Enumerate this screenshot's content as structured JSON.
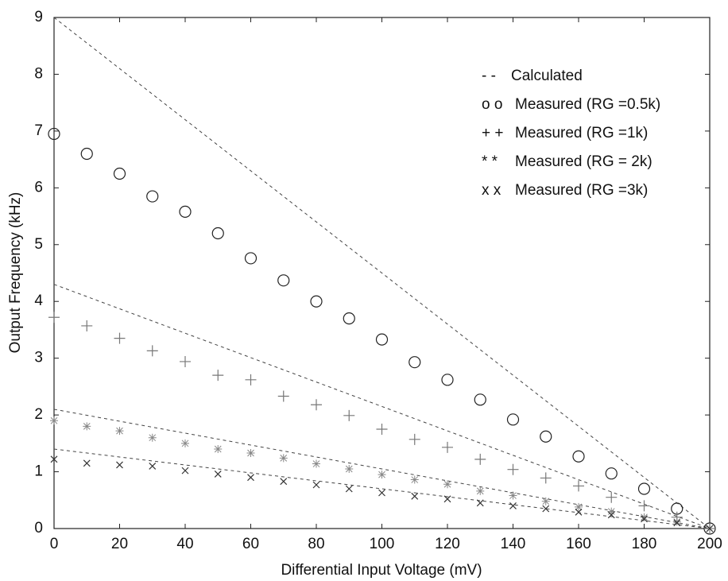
{
  "chart_data": {
    "type": "scatter",
    "xlabel": "Differential Input Voltage (mV)",
    "ylabel": "Output Frequency (kHz)",
    "xlim": [
      0,
      200
    ],
    "ylim": [
      0,
      9
    ],
    "xticks": [
      0,
      20,
      40,
      60,
      80,
      100,
      120,
      140,
      160,
      180,
      200
    ],
    "yticks": [
      0,
      1,
      2,
      3,
      4,
      5,
      6,
      7,
      8,
      9
    ],
    "x": [
      0,
      10,
      20,
      30,
      40,
      50,
      60,
      70,
      80,
      90,
      100,
      110,
      120,
      130,
      140,
      150,
      160,
      170,
      180,
      190,
      200
    ],
    "series": [
      {
        "name": "Calculated",
        "legend_symbol": "- -",
        "marker": "dash-line",
        "color": "#444444",
        "x": [
          0,
          200,
          null,
          0,
          200,
          null,
          0,
          200,
          null,
          0,
          200
        ],
        "values": [
          9,
          0,
          null,
          4.3,
          0,
          null,
          2.1,
          0,
          null,
          1.4,
          0
        ]
      },
      {
        "name": "Measured (RG =0.5k)",
        "legend_symbol": "o o",
        "marker": "circle",
        "color": "#222222",
        "values": [
          6.95,
          6.6,
          6.25,
          5.85,
          5.58,
          5.2,
          4.76,
          4.37,
          4.0,
          3.7,
          3.33,
          2.93,
          2.62,
          2.27,
          1.92,
          1.62,
          1.27,
          0.97,
          0.7,
          0.35,
          0
        ]
      },
      {
        "name": "Measured (RG =1k)",
        "legend_symbol": "+ +",
        "marker": "plus",
        "color": "#777777",
        "values": [
          3.72,
          3.57,
          3.35,
          3.13,
          2.94,
          2.7,
          2.62,
          2.33,
          2.18,
          1.99,
          1.75,
          1.57,
          1.43,
          1.22,
          1.04,
          0.89,
          0.75,
          0.55,
          0.4,
          0.2,
          0
        ]
      },
      {
        "name": "Measured (RG = 2k)",
        "legend_symbol": "* *",
        "marker": "star",
        "color": "#888888",
        "values": [
          1.9,
          1.8,
          1.72,
          1.6,
          1.5,
          1.4,
          1.33,
          1.24,
          1.14,
          1.05,
          0.95,
          0.86,
          0.78,
          0.66,
          0.58,
          0.48,
          0.38,
          0.3,
          0.2,
          0.12,
          0
        ]
      },
      {
        "name": "Measured (RG =3k)",
        "legend_symbol": "x x",
        "marker": "cross",
        "color": "#333333",
        "values": [
          1.22,
          1.15,
          1.12,
          1.1,
          1.02,
          0.96,
          0.9,
          0.83,
          0.77,
          0.7,
          0.63,
          0.57,
          0.52,
          0.45,
          0.4,
          0.35,
          0.29,
          0.24,
          0.17,
          0.1,
          0
        ]
      }
    ]
  }
}
